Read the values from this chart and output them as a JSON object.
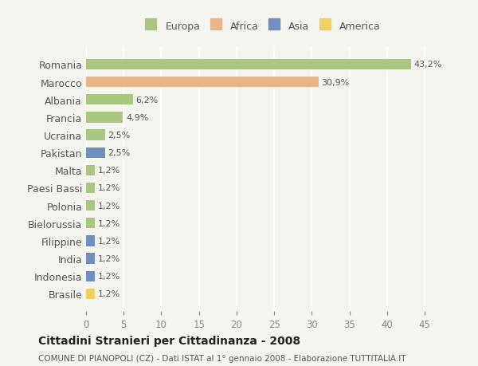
{
  "countries": [
    "Romania",
    "Marocco",
    "Albania",
    "Francia",
    "Ucraina",
    "Pakistan",
    "Malta",
    "Paesi Bassi",
    "Polonia",
    "Bielorussia",
    "Filippine",
    "India",
    "Indonesia",
    "Brasile"
  ],
  "values": [
    43.2,
    30.9,
    6.2,
    4.9,
    2.5,
    2.5,
    1.2,
    1.2,
    1.2,
    1.2,
    1.2,
    1.2,
    1.2,
    1.2
  ],
  "labels": [
    "43,2%",
    "30,9%",
    "6,2%",
    "4,9%",
    "2,5%",
    "2,5%",
    "1,2%",
    "1,2%",
    "1,2%",
    "1,2%",
    "1,2%",
    "1,2%",
    "1,2%",
    "1,2%"
  ],
  "continent": [
    "Europa",
    "Africa",
    "Europa",
    "Europa",
    "Europa",
    "Asia",
    "Europa",
    "Europa",
    "Europa",
    "Europa",
    "Asia",
    "Asia",
    "Asia",
    "America"
  ],
  "colors": {
    "Europa": "#a8c882",
    "Africa": "#e8b48a",
    "Asia": "#6e8fbf",
    "America": "#f0d060"
  },
  "legend_colors": {
    "Europa": "#a8c882",
    "Africa": "#e8b48a",
    "Asia": "#6e8fbf",
    "America": "#f0d060"
  },
  "title": "Cittadini Stranieri per Cittadinanza - 2008",
  "subtitle": "COMUNE DI PIANOPOLI (CZ) - Dati ISTAT al 1° gennaio 2008 - Elaborazione TUTTITALIA.IT",
  "xlim": [
    0,
    47
  ],
  "xticks": [
    0,
    5,
    10,
    15,
    20,
    25,
    30,
    35,
    40,
    45
  ],
  "background_color": "#f5f5f0",
  "grid_color": "#ffffff"
}
